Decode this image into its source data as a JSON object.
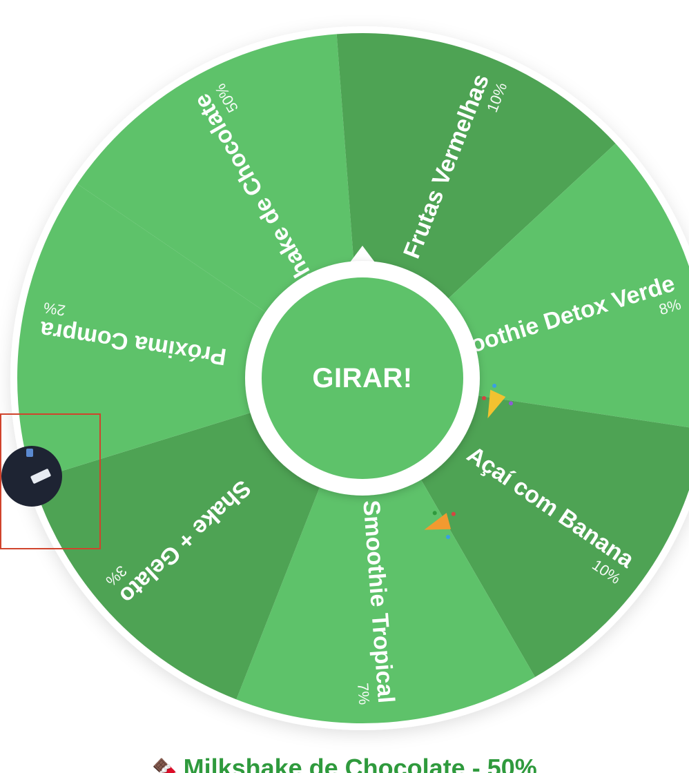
{
  "wheel": {
    "spin_label": "GIRAR!",
    "colors": {
      "light": "#5ec26a",
      "dark": "#4ea354",
      "hub_ring": "#ffffff",
      "hub": "#5ec26a"
    },
    "segments": [
      {
        "label": "Milkshake de Chocolate",
        "percent": "50%",
        "shade": "light"
      },
      {
        "label": "Frutas Vermelhas",
        "percent": "10%",
        "shade": "dark"
      },
      {
        "label": "Smoothie Detox Verde",
        "percent": "8%",
        "shade": "light"
      },
      {
        "label": "Açaí com Banana",
        "percent": "10%",
        "shade": "dark"
      },
      {
        "label": "Smoothie Tropical",
        "percent": "7%",
        "shade": "light"
      },
      {
        "label": "Shake + Gelato",
        "percent": "3%",
        "shade": "dark"
      },
      {
        "label": "Próxima Compra",
        "percent": "2%",
        "shade": "light"
      }
    ],
    "confetti_icons": [
      "party-popper-icon",
      "party-popper-icon"
    ],
    "ball_icon": "ball-icon"
  },
  "result": {
    "icon": "chocolate-icon",
    "text": "Milkshake de Chocolate - 50%"
  }
}
